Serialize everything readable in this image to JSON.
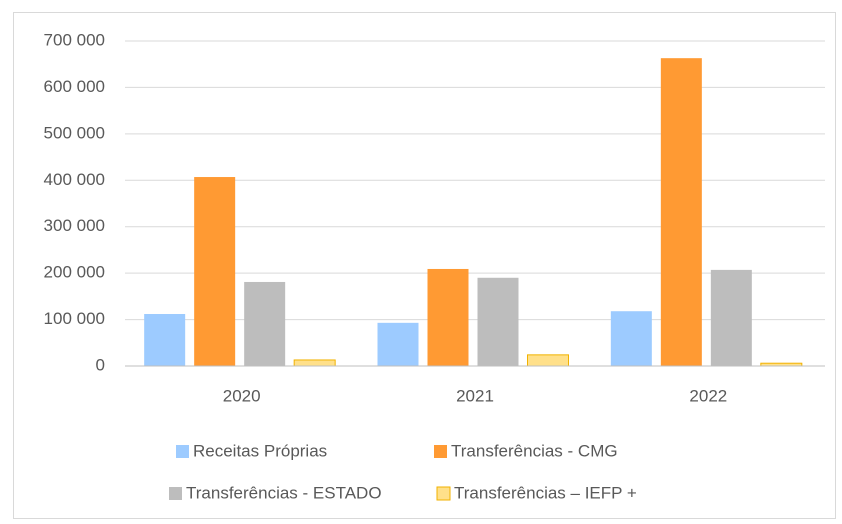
{
  "chart_data": {
    "type": "bar",
    "categories": [
      "2020",
      "2021",
      "2022"
    ],
    "series": [
      {
        "name": "Receitas Próprias",
        "color": "#9dcbff",
        "values": [
          112000,
          93000,
          118000
        ]
      },
      {
        "name": "Transferências - CMG",
        "color": "#ff9a33",
        "values": [
          407000,
          209000,
          663000
        ]
      },
      {
        "name": "Transferências - ESTADO",
        "color": "#bdbdbd",
        "values": [
          181000,
          190000,
          207000
        ]
      },
      {
        "name": "Transferências – IEFP +",
        "color": "#ffe08a",
        "values": [
          13000,
          24000,
          6000
        ]
      }
    ],
    "ylim": [
      0,
      700000
    ],
    "yticks": [
      0,
      {
        "value": 100000,
        "label": "100 000"
      },
      {
        "value": 200000,
        "label": "200 000"
      },
      {
        "value": 300000,
        "label": "300 000"
      },
      {
        "value": 400000,
        "label": "400 000"
      },
      {
        "value": 500000,
        "label": "500 000"
      },
      {
        "value": 600000,
        "label": "600 000"
      },
      {
        "value": 700000,
        "label": "700 000"
      }
    ],
    "grid": true,
    "legend": "bottom"
  }
}
